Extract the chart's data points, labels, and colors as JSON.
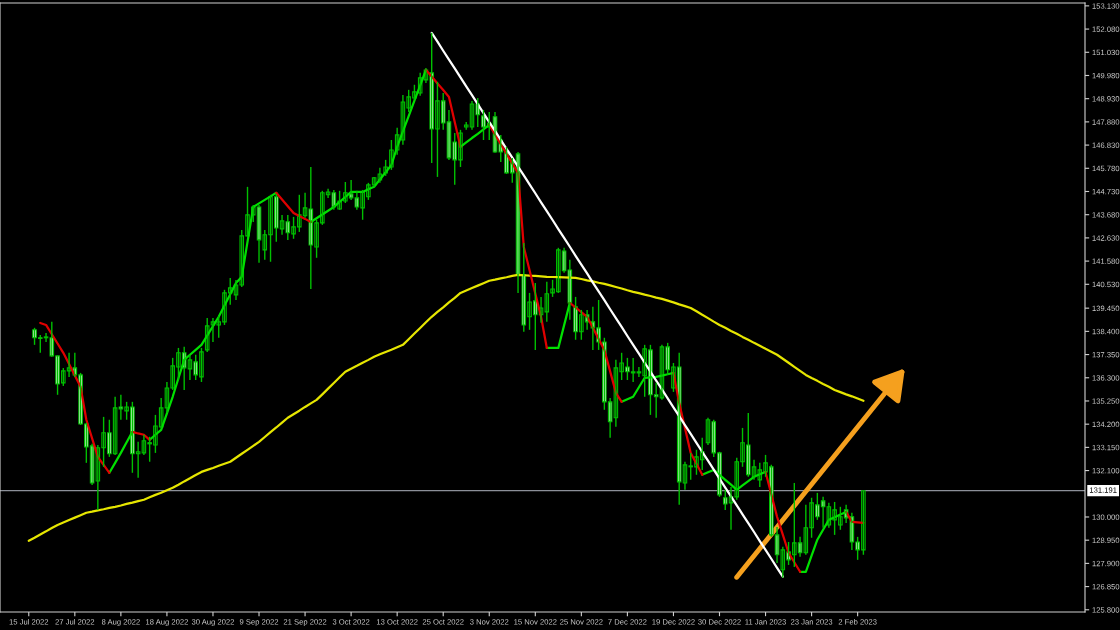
{
  "chart_data": {
    "type": "candlestick",
    "categories": [
      "15 Jul 2022",
      null,
      null,
      null,
      null,
      null,
      null,
      null,
      "27 Jul 2022",
      null,
      null,
      null,
      null,
      null,
      null,
      null,
      "8 Aug 2022",
      null,
      null,
      null,
      null,
      null,
      null,
      null,
      "18 Aug 2022",
      null,
      null,
      null,
      null,
      null,
      null,
      null,
      "30 Aug 2022",
      null,
      null,
      null,
      null,
      null,
      null,
      null,
      "9 Sep 2022",
      null,
      null,
      null,
      null,
      null,
      null,
      null,
      "21 Sep 2022",
      null,
      null,
      null,
      null,
      null,
      null,
      null,
      "3 Oct 2022",
      null,
      null,
      null,
      null,
      null,
      null,
      null,
      "13 Oct 2022",
      null,
      null,
      null,
      null,
      null,
      null,
      null,
      "25 Oct 2022",
      null,
      null,
      null,
      null,
      null,
      null,
      null,
      "3 Nov 2022",
      null,
      null,
      null,
      null,
      null,
      null,
      null,
      "15 Nov 2022",
      null,
      null,
      null,
      null,
      null,
      null,
      null,
      "25 Nov 2022",
      null,
      null,
      null,
      null,
      null,
      null,
      null,
      "7 Dec 2022",
      null,
      null,
      null,
      null,
      null,
      null,
      null,
      "19 Dec 2022",
      null,
      null,
      null,
      null,
      null,
      null,
      null,
      "30 Dec 2022",
      null,
      null,
      null,
      null,
      null,
      null,
      null,
      "11 Jan 2023",
      null,
      null,
      null,
      null,
      null,
      null,
      null,
      "23 Jan 2023",
      null,
      null,
      null,
      null,
      null,
      null,
      null,
      "2 Feb 2023",
      null,
      null,
      null,
      null,
      null,
      null,
      null,
      null,
      null,
      null,
      null,
      null,
      null,
      null,
      null,
      null,
      null,
      null,
      null,
      null,
      null,
      null,
      null,
      null,
      null,
      null,
      null,
      null,
      null,
      null,
      null,
      null,
      null,
      null,
      null,
      null,
      null,
      null,
      null
    ],
    "color": "#00c000",
    "ohlc": [
      null,
      [
        138.47,
        138.56,
        137.79,
        138.11
      ],
      [
        138.11,
        138.24,
        137.43,
        138.08
      ],
      [
        138.11,
        138.33,
        137.92,
        138.15
      ],
      [
        138.11,
        138.83,
        137.25,
        137.29
      ],
      [
        137.29,
        137.29,
        135.53,
        136.02
      ],
      [
        136.07,
        136.74,
        135.93,
        136.61
      ],
      [
        136.61,
        137.43,
        136.34,
        136.75
      ],
      [
        136.75,
        137.43,
        136.34,
        136.43
      ],
      [
        136.43,
        136.52,
        134.17,
        134.21
      ],
      [
        134.21,
        134.26,
        132.45,
        133.17
      ],
      [
        133.22,
        133.31,
        131.45,
        131.54
      ],
      [
        131.63,
        133.26,
        130.32,
        133.13
      ],
      [
        133.13,
        134.53,
        132.27,
        133.81
      ],
      [
        133.81,
        134.4,
        132.72,
        132.86
      ],
      [
        132.86,
        135.44,
        132.81,
        134.94
      ],
      [
        134.98,
        135.53,
        134.4,
        134.89
      ],
      [
        134.8,
        135.21,
        134.4,
        134.98
      ],
      [
        134.98,
        135.21,
        132.0,
        132.86
      ],
      [
        132.86,
        133.4,
        131.77,
        132.95
      ],
      [
        132.9,
        133.72,
        132.81,
        133.45
      ],
      [
        133.36,
        133.63,
        132.5,
        133.31
      ],
      [
        133.26,
        134.62,
        132.9,
        134.12
      ],
      [
        134.08,
        135.39,
        134.03,
        134.94
      ],
      [
        134.94,
        136.11,
        134.71,
        135.84
      ],
      [
        135.84,
        137.2,
        135.75,
        136.84
      ],
      [
        136.79,
        137.65,
        136.2,
        137.43
      ],
      [
        137.43,
        137.7,
        135.75,
        136.75
      ],
      [
        136.7,
        137.34,
        136.2,
        137.11
      ],
      [
        137.02,
        137.34,
        136.2,
        136.43
      ],
      [
        136.34,
        137.65,
        136.11,
        137.47
      ],
      [
        137.56,
        139.01,
        137.47,
        138.65
      ],
      [
        138.69,
        139.01,
        137.92,
        138.83
      ],
      [
        138.69,
        139.1,
        138.11,
        138.83
      ],
      [
        138.83,
        140.28,
        138.69,
        140.14
      ],
      [
        140.14,
        140.82,
        139.6,
        140.37
      ],
      [
        140.05,
        140.73,
        139.82,
        140.5
      ],
      [
        140.5,
        142.99,
        140.41,
        142.72
      ],
      [
        142.72,
        144.94,
        142.68,
        143.67
      ],
      [
        143.67,
        144.12,
        143.35,
        144.03
      ],
      [
        144.03,
        144.12,
        141.5,
        142.54
      ],
      [
        142.09,
        142.99,
        141.64,
        142.77
      ],
      [
        142.77,
        144.58,
        141.55,
        144.49
      ],
      [
        144.49,
        144.62,
        142.45,
        143.08
      ],
      [
        143.04,
        143.67,
        142.77,
        143.4
      ],
      [
        143.36,
        143.67,
        142.54,
        142.86
      ],
      [
        142.81,
        143.58,
        142.59,
        143.13
      ],
      [
        143.13,
        144.58,
        142.9,
        143.67
      ],
      [
        143.63,
        144.67,
        143.54,
        143.99
      ],
      [
        143.94,
        145.84,
        140.32,
        142.31
      ],
      [
        142.22,
        143.45,
        141.73,
        143.31
      ],
      [
        143.31,
        144.76,
        143.22,
        144.67
      ],
      [
        144.58,
        144.85,
        144.44,
        144.71
      ],
      [
        144.67,
        144.8,
        143.9,
        144.03
      ],
      [
        143.94,
        144.76,
        143.9,
        144.3
      ],
      [
        144.3,
        145.16,
        144.21,
        144.67
      ],
      [
        144.62,
        145.25,
        144.35,
        144.44
      ],
      [
        144.44,
        144.76,
        143.9,
        144.03
      ],
      [
        143.99,
        144.8,
        143.45,
        144.71
      ],
      [
        144.49,
        145.12,
        144.35,
        145.03
      ],
      [
        145.03,
        145.39,
        144.94,
        145.35
      ],
      [
        145.25,
        145.8,
        145.12,
        145.52
      ],
      [
        145.57,
        146.16,
        145.44,
        145.84
      ],
      [
        145.84,
        147.06,
        145.71,
        146.61
      ],
      [
        146.61,
        147.61,
        146.39,
        147.29
      ],
      [
        147.06,
        149.1,
        146.84,
        148.78
      ],
      [
        148.51,
        149.33,
        148.33,
        149.01
      ],
      [
        148.96,
        149.56,
        148.88,
        149.24
      ],
      [
        149.19,
        150.1,
        149.06,
        149.87
      ],
      [
        149.78,
        150.32,
        149.64,
        150.23
      ],
      [
        150.1,
        151.91,
        146.02,
        147.56
      ],
      [
        147.56,
        149.69,
        145.39,
        148.83
      ],
      [
        148.83,
        149.19,
        147.52,
        147.83
      ],
      [
        147.88,
        148.42,
        146.16,
        146.25
      ],
      [
        146.97,
        147.38,
        145.03,
        146.16
      ],
      [
        146.16,
        147.52,
        145.84,
        147.38
      ],
      [
        147.65,
        147.88,
        147.52,
        147.74
      ],
      [
        147.65,
        148.83,
        147.52,
        148.69
      ],
      [
        148.69,
        148.96,
        147.65,
        148.2
      ],
      [
        148.15,
        148.42,
        147.06,
        147.65
      ],
      [
        147.65,
        148.33,
        147.06,
        147.83
      ],
      [
        148.11,
        148.33,
        146.48,
        146.52
      ],
      [
        147.06,
        147.29,
        146.07,
        146.52
      ],
      [
        146.52,
        146.75,
        145.53,
        145.57
      ],
      [
        146.07,
        146.25,
        145.12,
        145.57
      ],
      [
        146.43,
        146.52,
        140.14,
        140.96
      ],
      [
        140.96,
        142.4,
        138.38,
        138.69
      ],
      [
        139.06,
        140.14,
        138.47,
        139.73
      ],
      [
        139.78,
        140.59,
        137.56,
        139.15
      ],
      [
        139.15,
        139.96,
        138.79,
        139.46
      ],
      [
        139.28,
        140.64,
        138.83,
        140.1
      ],
      [
        140.14,
        140.73,
        139.96,
        140.32
      ],
      [
        140.19,
        142.18,
        140.14,
        142.09
      ],
      [
        142.04,
        142.18,
        141.05,
        141.14
      ],
      [
        141.18,
        141.64,
        138.92,
        139.69
      ],
      [
        139.51,
        139.96,
        138.02,
        138.38
      ],
      [
        138.38,
        139.37,
        138.02,
        139.15
      ],
      [
        139.15,
        139.37,
        138.47,
        138.83
      ],
      [
        138.83,
        139.51,
        137.56,
        138.56
      ],
      [
        138.56,
        139.82,
        137.56,
        137.92
      ],
      [
        137.92,
        138.11,
        134.85,
        135.21
      ],
      [
        135.21,
        135.39,
        133.58,
        134.31
      ],
      [
        134.49,
        137.11,
        134.08,
        136.75
      ],
      [
        136.57,
        137.43,
        136.2,
        136.97
      ],
      [
        136.79,
        137.2,
        136.2,
        136.57
      ],
      [
        136.52,
        137.2,
        136.11,
        136.57
      ],
      [
        136.52,
        136.79,
        136.34,
        136.57
      ],
      [
        136.39,
        137.79,
        135.44,
        137.61
      ],
      [
        137.56,
        137.79,
        134.62,
        135.53
      ],
      [
        135.53,
        136.07,
        134.49,
        135.44
      ],
      [
        135.39,
        137.79,
        135.3,
        137.7
      ],
      [
        137.7,
        137.88,
        136.43,
        136.66
      ],
      [
        135.84,
        136.97,
        135.66,
        136.79
      ],
      [
        136.79,
        137.43,
        130.55,
        131.59
      ],
      [
        131.54,
        132.5,
        131.23,
        132.36
      ],
      [
        132.31,
        132.9,
        131.68,
        132.27
      ],
      [
        132.27,
        133.04,
        131.91,
        132.72
      ],
      [
        132.59,
        133.58,
        132.13,
        132.95
      ],
      [
        133.36,
        134.49,
        133.26,
        134.4
      ],
      [
        134.31,
        134.4,
        132.72,
        132.9
      ],
      [
        132.9,
        132.95,
        130.91,
        131.0
      ],
      [
        130.87,
        131.23,
        130.32,
        130.59
      ],
      [
        130.64,
        131.36,
        129.42,
        130.91
      ],
      [
        130.91,
        132.68,
        130.78,
        132.5
      ],
      [
        132.5,
        134.03,
        132.27,
        133.36
      ],
      [
        133.26,
        134.71,
        131.82,
        131.91
      ],
      [
        131.82,
        132.59,
        131.68,
        132.27
      ],
      [
        131.68,
        132.45,
        131.36,
        132.13
      ],
      [
        132.04,
        132.81,
        131.82,
        132.45
      ],
      [
        132.27,
        132.36,
        129.1,
        129.19
      ],
      [
        129.19,
        129.55,
        127.92,
        128.29
      ],
      [
        127.61,
        128.65,
        127.25,
        128.51
      ],
      [
        128.42,
        128.87,
        127.83,
        128.06
      ],
      [
        128.29,
        131.54,
        127.74,
        128.83
      ],
      [
        128.83,
        129.1,
        128.2,
        128.38
      ],
      [
        128.38,
        130.55,
        128.29,
        129.51
      ],
      [
        129.51,
        130.87,
        129.06,
        130.64
      ],
      [
        130.55,
        131.09,
        129.87,
        130.01
      ],
      [
        130.73,
        130.91,
        129.51,
        130.46
      ],
      [
        129.64,
        130.64,
        129.51,
        130.46
      ],
      [
        129.87,
        130.68,
        129.19,
        130.32
      ],
      [
        129.64,
        130.46,
        129.42,
        130.01
      ],
      [
        130.32,
        130.55,
        129.73,
        129.96
      ],
      [
        130.01,
        130.19,
        128.51,
        128.87
      ],
      [
        128.87,
        129.1,
        128.06,
        128.51
      ],
      [
        128.51,
        131.19,
        128.29,
        131.19
      ],
      null,
      null,
      null,
      null,
      null,
      null,
      null,
      null,
      null,
      null,
      null,
      null,
      null,
      null,
      null,
      null,
      null,
      null,
      null,
      null,
      null,
      null,
      null,
      null,
      null,
      null,
      null,
      null,
      null,
      null,
      null,
      null,
      null,
      null,
      null,
      null,
      null,
      null
    ],
    "series": [
      {
        "type": "line",
        "color": "#e6e600",
        "values": [
          128.92,
          129.06,
          129.21,
          129.35,
          129.5,
          129.64,
          129.75,
          129.86,
          129.97,
          130.08,
          130.19,
          130.24,
          130.3,
          130.35,
          130.41,
          130.46,
          130.52,
          130.59,
          130.65,
          130.72,
          130.78,
          130.89,
          131.0,
          131.1,
          131.21,
          131.32,
          131.46,
          131.61,
          131.75,
          131.9,
          132.04,
          132.13,
          132.22,
          132.32,
          132.41,
          132.5,
          132.68,
          132.86,
          133.04,
          133.22,
          133.4,
          133.62,
          133.84,
          134.05,
          134.27,
          134.49,
          134.65,
          134.81,
          134.98,
          135.14,
          135.3,
          135.55,
          135.81,
          136.06,
          136.32,
          136.57,
          136.71,
          136.84,
          136.98,
          137.11,
          137.25,
          137.36,
          137.47,
          137.57,
          137.68,
          137.79,
          138.04,
          138.3,
          138.55,
          138.81,
          139.06,
          139.28,
          139.49,
          139.71,
          139.92,
          140.14,
          140.25,
          140.36,
          140.47,
          140.58,
          140.69,
          140.74,
          140.8,
          140.85,
          140.91,
          140.96,
          140.94,
          140.92,
          140.91,
          140.89,
          140.87,
          140.86,
          140.85,
          140.84,
          140.83,
          140.82,
          140.77,
          140.71,
          140.66,
          140.6,
          140.55,
          140.48,
          140.41,
          140.34,
          140.26,
          140.19,
          140.13,
          140.06,
          140.0,
          139.93,
          139.87,
          139.79,
          139.71,
          139.62,
          139.54,
          139.46,
          139.31,
          139.15,
          139.0,
          138.84,
          138.69,
          138.56,
          138.42,
          138.29,
          138.15,
          138.02,
          137.88,
          137.75,
          137.61,
          137.48,
          137.34,
          137.16,
          136.98,
          136.79,
          136.61,
          136.43,
          136.29,
          136.16,
          136.02,
          135.89,
          135.75,
          135.65,
          135.55,
          135.46,
          135.36,
          135.26,
          null,
          null,
          null,
          null,
          null,
          null,
          null,
          null,
          null,
          null,
          null,
          null,
          null,
          null,
          null,
          null,
          null,
          null,
          null,
          null,
          null,
          null,
          null,
          null,
          null,
          null,
          null,
          null,
          null,
          null,
          null,
          null,
          null,
          null,
          null,
          null,
          null,
          null
        ]
      },
      {
        "type": "line",
        "color": "#00e000",
        "values": [
          null,
          null,
          null,
          null,
          null,
          null,
          null,
          null,
          null,
          null,
          null,
          null,
          null,
          null,
          132.0,
          132.45,
          132.9,
          133.38,
          133.85,
          null,
          null,
          133.49,
          133.72,
          133.94,
          134.69,
          135.44,
          136.28,
          137.11,
          137.34,
          137.56,
          137.79,
          138.21,
          138.64,
          139.06,
          139.57,
          140.08,
          140.59,
          140.87,
          142.45,
          144.03,
          144.19,
          144.35,
          144.51,
          144.67,
          null,
          null,
          null,
          null,
          null,
          143.35,
          143.52,
          143.69,
          143.86,
          144.03,
          144.26,
          144.48,
          144.71,
          144.71,
          144.71,
          144.83,
          144.94,
          145.27,
          145.6,
          145.93,
          146.75,
          147.45,
          148.14,
          148.84,
          149.53,
          150.23,
          null,
          null,
          null,
          null,
          null,
          146.75,
          146.95,
          147.15,
          147.34,
          147.54,
          147.74,
          null,
          null,
          null,
          null,
          null,
          null,
          null,
          null,
          null,
          137.65,
          137.65,
          137.65,
          138.67,
          139.69,
          null,
          null,
          null,
          null,
          null,
          null,
          null,
          null,
          135.21,
          135.33,
          135.44,
          135.87,
          136.3,
          136.32,
          136.34,
          136.4,
          136.46,
          136.52,
          null,
          null,
          null,
          null,
          131.91,
          132.02,
          132.13,
          131.91,
          131.68,
          131.46,
          131.23,
          131.43,
          131.62,
          131.82,
          131.93,
          132.04,
          null,
          null,
          null,
          null,
          null,
          127.52,
          127.52,
          128.25,
          128.97,
          129.42,
          129.87,
          129.99,
          130.11,
          130.23,
          null,
          null,
          null,
          null,
          null,
          null,
          null,
          null,
          null,
          null,
          null,
          null,
          null,
          null,
          null,
          null,
          null,
          null,
          null,
          null,
          null,
          null,
          null,
          null,
          null,
          null,
          null,
          null,
          null,
          null,
          null,
          null,
          null,
          null,
          null,
          null,
          null,
          null,
          null,
          null,
          null
        ]
      },
      {
        "type": "line",
        "color": "#e00000",
        "values": [
          null,
          null,
          138.78,
          138.69,
          138.27,
          137.85,
          137.43,
          136.92,
          136.4,
          135.89,
          134.4,
          133.56,
          132.72,
          132.36,
          132.0,
          null,
          null,
          null,
          133.85,
          133.78,
          133.72,
          133.49,
          null,
          null,
          null,
          null,
          null,
          null,
          null,
          null,
          null,
          null,
          null,
          null,
          null,
          null,
          null,
          null,
          null,
          null,
          null,
          null,
          null,
          144.67,
          144.37,
          144.06,
          143.76,
          143.62,
          143.49,
          143.35,
          null,
          null,
          null,
          null,
          null,
          null,
          null,
          null,
          null,
          null,
          null,
          null,
          null,
          null,
          null,
          null,
          null,
          null,
          null,
          150.23,
          149.93,
          149.62,
          149.32,
          149.01,
          147.88,
          146.75,
          null,
          null,
          null,
          null,
          147.74,
          147.31,
          146.87,
          146.44,
          146.0,
          145.57,
          142.22,
          141.17,
          140.11,
          139.06,
          137.65,
          null,
          null,
          null,
          139.69,
          139.48,
          139.27,
          139.06,
          138.56,
          138.06,
          137.56,
          136.59,
          135.62,
          135.21,
          null,
          null,
          null,
          null,
          null,
          null,
          null,
          null,
          136.52,
          135.16,
          134.03,
          132.9,
          132.41,
          131.91,
          null,
          null,
          null,
          null,
          null,
          null,
          null,
          null,
          null,
          null,
          132.04,
          131.03,
          130.01,
          129.2,
          128.38,
          127.95,
          127.52,
          null,
          null,
          null,
          null,
          null,
          null,
          null,
          130.23,
          129.78,
          129.76,
          129.73,
          null,
          null,
          null,
          null,
          null,
          null,
          null,
          null,
          null,
          null,
          null,
          null,
          null,
          null,
          null,
          null,
          null,
          null,
          null,
          null,
          null,
          null,
          null,
          null,
          null,
          null,
          null,
          null,
          null,
          null,
          null,
          null,
          null,
          null,
          null,
          null,
          null,
          null
        ]
      },
      {
        "type": "line",
        "color": "#ffffff",
        "values": [
          null,
          null,
          null,
          null,
          null,
          null,
          null,
          null,
          null,
          null,
          null,
          null,
          null,
          null,
          null,
          null,
          null,
          null,
          null,
          null,
          null,
          null,
          null,
          null,
          null,
          null,
          null,
          null,
          null,
          null,
          null,
          null,
          null,
          null,
          null,
          null,
          null,
          null,
          null,
          null,
          null,
          null,
          null,
          null,
          null,
          null,
          null,
          null,
          null,
          null,
          null,
          null,
          null,
          null,
          null,
          null,
          null,
          null,
          null,
          null,
          null,
          null,
          null,
          null,
          null,
          null,
          null,
          null,
          null,
          null,
          151.91,
          151.51,
          151.1,
          150.7,
          150.3,
          149.89,
          149.49,
          149.09,
          148.68,
          148.28,
          147.87,
          147.47,
          147.07,
          146.66,
          146.26,
          145.86,
          145.46,
          145.05,
          144.65,
          144.24,
          143.84,
          143.44,
          143.03,
          142.63,
          142.23,
          141.82,
          141.42,
          141.02,
          140.61,
          140.21,
          139.81,
          139.4,
          139.0,
          138.6,
          138.19,
          137.79,
          137.39,
          136.98,
          136.58,
          136.17,
          135.77,
          135.37,
          134.96,
          134.56,
          134.16,
          133.76,
          133.35,
          132.95,
          132.55,
          132.14,
          131.74,
          131.33,
          130.93,
          130.53,
          130.12,
          129.72,
          129.32,
          128.91,
          128.51,
          128.11,
          127.7,
          127.3,
          null,
          null,
          null,
          null,
          null,
          null,
          null,
          null,
          null,
          null,
          null,
          null,
          null,
          null,
          null,
          null,
          null,
          null,
          null,
          null,
          null,
          null,
          null,
          null,
          null,
          null,
          null,
          null,
          null,
          null,
          null,
          null,
          null,
          null,
          null,
          null,
          null,
          null,
          null,
          null,
          null,
          null,
          null,
          null,
          null,
          null,
          null,
          null,
          null,
          null,
          null,
          null
        ]
      }
    ],
    "ylim": [
      125.7,
      153.26
    ],
    "yticks": [
      {
        "value": 153.13,
        "label": "153.130"
      },
      {
        "value": 152.08,
        "label": "152.080"
      },
      {
        "value": 151.03,
        "label": "151.030"
      },
      {
        "value": 149.98,
        "label": "149.980"
      },
      {
        "value": 148.93,
        "label": "148.930"
      },
      {
        "value": 147.88,
        "label": "147.880"
      },
      {
        "value": 146.83,
        "label": "146.830"
      },
      {
        "value": 145.78,
        "label": "145.780"
      },
      {
        "value": 144.73,
        "label": "144.730"
      },
      {
        "value": 143.68,
        "label": "143.680"
      },
      {
        "value": 142.63,
        "label": "142.630"
      },
      {
        "value": 141.58,
        "label": "141.580"
      },
      {
        "value": 140.53,
        "label": "140.530"
      },
      {
        "value": 139.45,
        "label": "139.450"
      },
      {
        "value": 138.4,
        "label": "138.400"
      },
      {
        "value": 137.35,
        "label": "137.350"
      },
      {
        "value": 136.3,
        "label": "136.300"
      },
      {
        "value": 135.25,
        "label": "135.250"
      },
      {
        "value": 134.2,
        "label": "134.200"
      },
      {
        "value": 133.15,
        "label": "133.150"
      },
      {
        "value": 132.1,
        "label": "132.100"
      },
      {
        "value": 130.0,
        "label": "130.000"
      },
      {
        "value": 128.95,
        "label": "128.950"
      },
      {
        "value": 127.9,
        "label": "127.900"
      },
      {
        "value": 126.85,
        "label": "126.850"
      },
      {
        "value": 125.8,
        "label": "125.800"
      }
    ],
    "ref_lines": [
      {
        "axis": "y",
        "value": 131.191,
        "label": "131.191",
        "color": "#8c9099"
      }
    ]
  }
}
